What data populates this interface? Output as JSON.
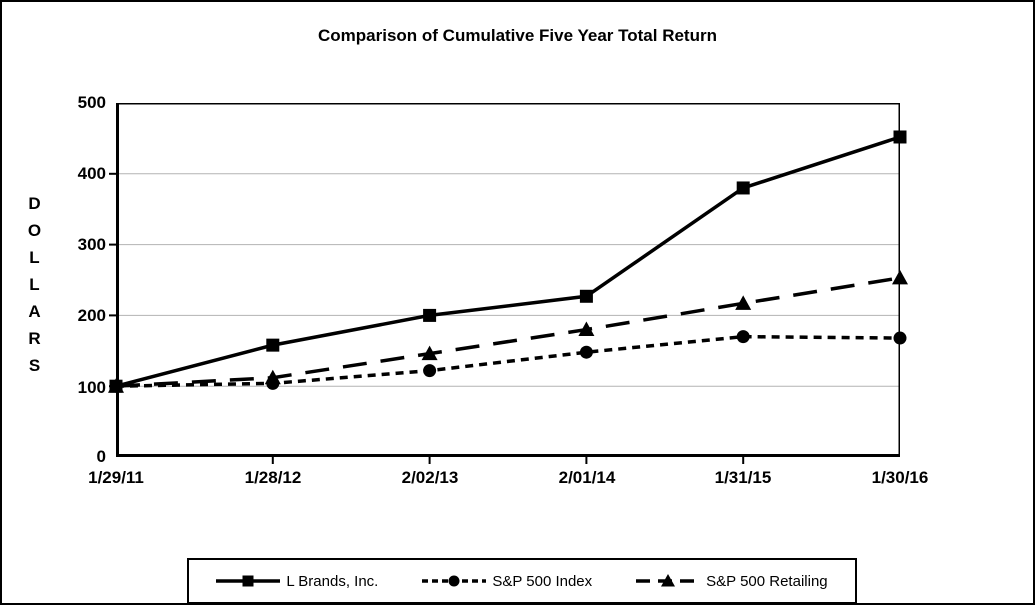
{
  "title": "Comparison of Cumulative Five Year Total Return",
  "chart_data": {
    "type": "line",
    "title": "Comparison of Cumulative Five Year Total Return",
    "xlabel": "",
    "ylabel": "DOLLARS",
    "ylim": [
      0,
      500
    ],
    "yticks": [
      500,
      400,
      300,
      200,
      100,
      0
    ],
    "ytick_labels": [
      "500",
      "400",
      "300",
      "200",
      "100",
      "0"
    ],
    "grid": "horizontal gridlines at 100,200,300,400",
    "legend_position": "bottom",
    "categories": [
      "1/29/11",
      "1/28/12",
      "2/02/13",
      "2/01/14",
      "1/31/15",
      "1/30/16"
    ],
    "series": [
      {
        "name": "L Brands, Inc.",
        "marker": "square",
        "line": "solid",
        "values": [
          100,
          158,
          200,
          227,
          380,
          452
        ]
      },
      {
        "name": "S&P 500 Index",
        "marker": "circle",
        "line": "dash",
        "values": [
          100,
          104,
          122,
          148,
          170,
          168
        ]
      },
      {
        "name": "S&P 500 Retailing",
        "marker": "triangle",
        "line": "longdash",
        "values": [
          100,
          112,
          146,
          180,
          217,
          253
        ]
      }
    ],
    "colors": {
      "series": "#000000",
      "grid": "#b3b3b3",
      "frame": "#000000",
      "background": "#ffffff"
    }
  }
}
